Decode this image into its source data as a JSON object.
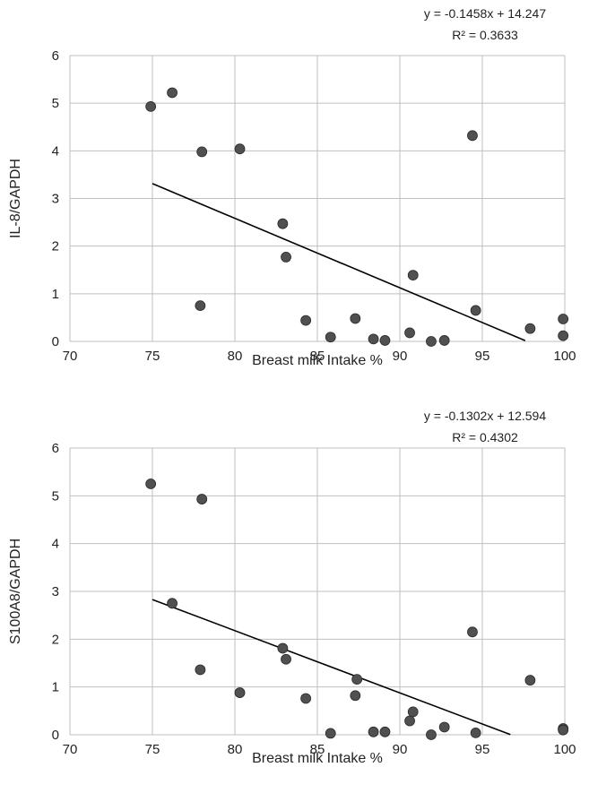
{
  "chart_data": [
    {
      "type": "scatter",
      "xlabel": "Breast milk Intake %",
      "ylabel": "IL-8/GAPDH",
      "xlim": [
        70,
        100
      ],
      "ylim": [
        0,
        6
      ],
      "xticks": [
        70,
        75,
        80,
        85,
        90,
        95,
        100
      ],
      "yticks": [
        0,
        1,
        2,
        3,
        4,
        5,
        6
      ],
      "grid": true,
      "points": [
        {
          "x": 74.9,
          "y": 4.93
        },
        {
          "x": 76.2,
          "y": 5.22
        },
        {
          "x": 78.0,
          "y": 3.98
        },
        {
          "x": 77.9,
          "y": 0.75
        },
        {
          "x": 80.3,
          "y": 4.04
        },
        {
          "x": 82.9,
          "y": 2.47
        },
        {
          "x": 83.1,
          "y": 1.77
        },
        {
          "x": 84.3,
          "y": 0.44
        },
        {
          "x": 85.8,
          "y": 0.09
        },
        {
          "x": 87.3,
          "y": 0.48
        },
        {
          "x": 88.4,
          "y": 0.05
        },
        {
          "x": 89.1,
          "y": 0.02
        },
        {
          "x": 90.6,
          "y": 0.18
        },
        {
          "x": 90.8,
          "y": 1.39
        },
        {
          "x": 91.9,
          "y": 0.0
        },
        {
          "x": 92.7,
          "y": 0.02
        },
        {
          "x": 94.4,
          "y": 4.32
        },
        {
          "x": 94.6,
          "y": 0.65
        },
        {
          "x": 97.9,
          "y": 0.27
        },
        {
          "x": 99.9,
          "y": 0.47
        },
        {
          "x": 99.9,
          "y": 0.12
        }
      ],
      "trendline": {
        "slope": -0.1458,
        "intercept": 14.247,
        "x_range": [
          75,
          97.6
        ]
      },
      "equation": "y = -0.1458x + 14.247",
      "r_squared": "R² = 0.3633"
    },
    {
      "type": "scatter",
      "xlabel": "Breast milk Intake %",
      "ylabel": "S100A8/GAPDH",
      "xlim": [
        70,
        100
      ],
      "ylim": [
        0,
        6
      ],
      "xticks": [
        70,
        75,
        80,
        85,
        90,
        95,
        100
      ],
      "yticks": [
        0,
        1,
        2,
        3,
        4,
        5,
        6
      ],
      "grid": true,
      "points": [
        {
          "x": 74.9,
          "y": 5.25
        },
        {
          "x": 76.2,
          "y": 2.75
        },
        {
          "x": 78.0,
          "y": 4.93
        },
        {
          "x": 77.9,
          "y": 1.36
        },
        {
          "x": 80.3,
          "y": 0.88
        },
        {
          "x": 82.9,
          "y": 1.81
        },
        {
          "x": 83.1,
          "y": 1.58
        },
        {
          "x": 84.3,
          "y": 0.76
        },
        {
          "x": 85.8,
          "y": 0.03
        },
        {
          "x": 87.3,
          "y": 0.82
        },
        {
          "x": 87.4,
          "y": 1.16
        },
        {
          "x": 88.4,
          "y": 0.06
        },
        {
          "x": 89.1,
          "y": 0.06
        },
        {
          "x": 90.6,
          "y": 0.29
        },
        {
          "x": 90.8,
          "y": 0.48
        },
        {
          "x": 91.9,
          "y": 0.0
        },
        {
          "x": 92.7,
          "y": 0.16
        },
        {
          "x": 94.4,
          "y": 2.15
        },
        {
          "x": 94.6,
          "y": 0.04
        },
        {
          "x": 97.9,
          "y": 1.14
        },
        {
          "x": 99.9,
          "y": 0.13
        },
        {
          "x": 99.9,
          "y": 0.1
        }
      ],
      "trendline": {
        "slope": -0.1302,
        "intercept": 12.594,
        "x_range": [
          75,
          96.7
        ]
      },
      "equation": "y = -0.1302x + 12.594",
      "r_squared": "R² = 0.4302"
    }
  ],
  "colors": {
    "point": "#505050",
    "point_stroke": "#2a2a2a",
    "grid": "#bfbfbf",
    "trendline": "#000000",
    "text": "#222222"
  }
}
